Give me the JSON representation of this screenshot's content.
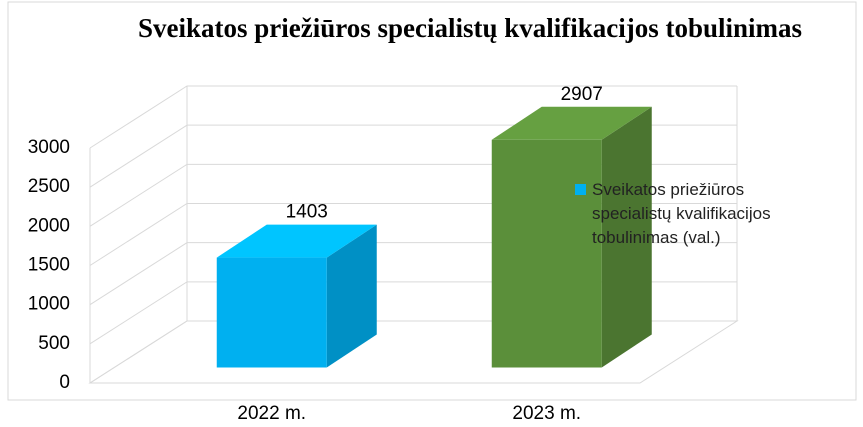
{
  "chart_data": {
    "type": "bar3d",
    "title": "Sveikatos priežiūros specialistų kvalifikacijos tobulinimas",
    "categories": [
      "2022 m.",
      "2023 m."
    ],
    "series": [
      {
        "name": "Sveikatos priežiūros specialistų kvalifikacijos tobulinimas (val.)",
        "colors": [
          "#00b0f0",
          "#5b8f3a"
        ],
        "values": [
          1403,
          2907
        ]
      }
    ],
    "ylim": [
      0,
      3000
    ],
    "yticks": [
      0,
      500,
      1000,
      1500,
      2000,
      2500,
      3000
    ],
    "grid": true,
    "legend": "right"
  }
}
